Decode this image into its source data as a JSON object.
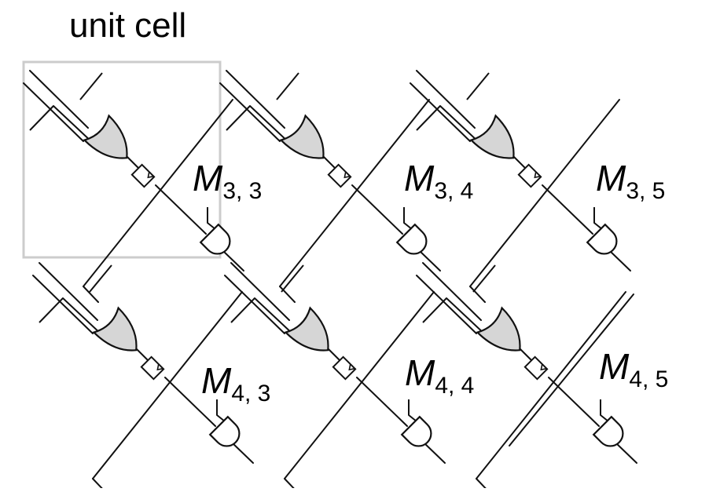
{
  "title": "unit cell",
  "colors": {
    "line": "#111111",
    "gate_fill": "#d6d6d6",
    "cell_box": "#cccccc",
    "background": "#ffffff"
  },
  "cells": [
    {
      "name": "M",
      "sub": "3, 3"
    },
    {
      "name": "M",
      "sub": "3, 4"
    },
    {
      "name": "M",
      "sub": "3, 5"
    },
    {
      "name": "M",
      "sub": "4, 3"
    },
    {
      "name": "M",
      "sub": "4, 4"
    },
    {
      "name": "M",
      "sub": "4, 5"
    }
  ]
}
